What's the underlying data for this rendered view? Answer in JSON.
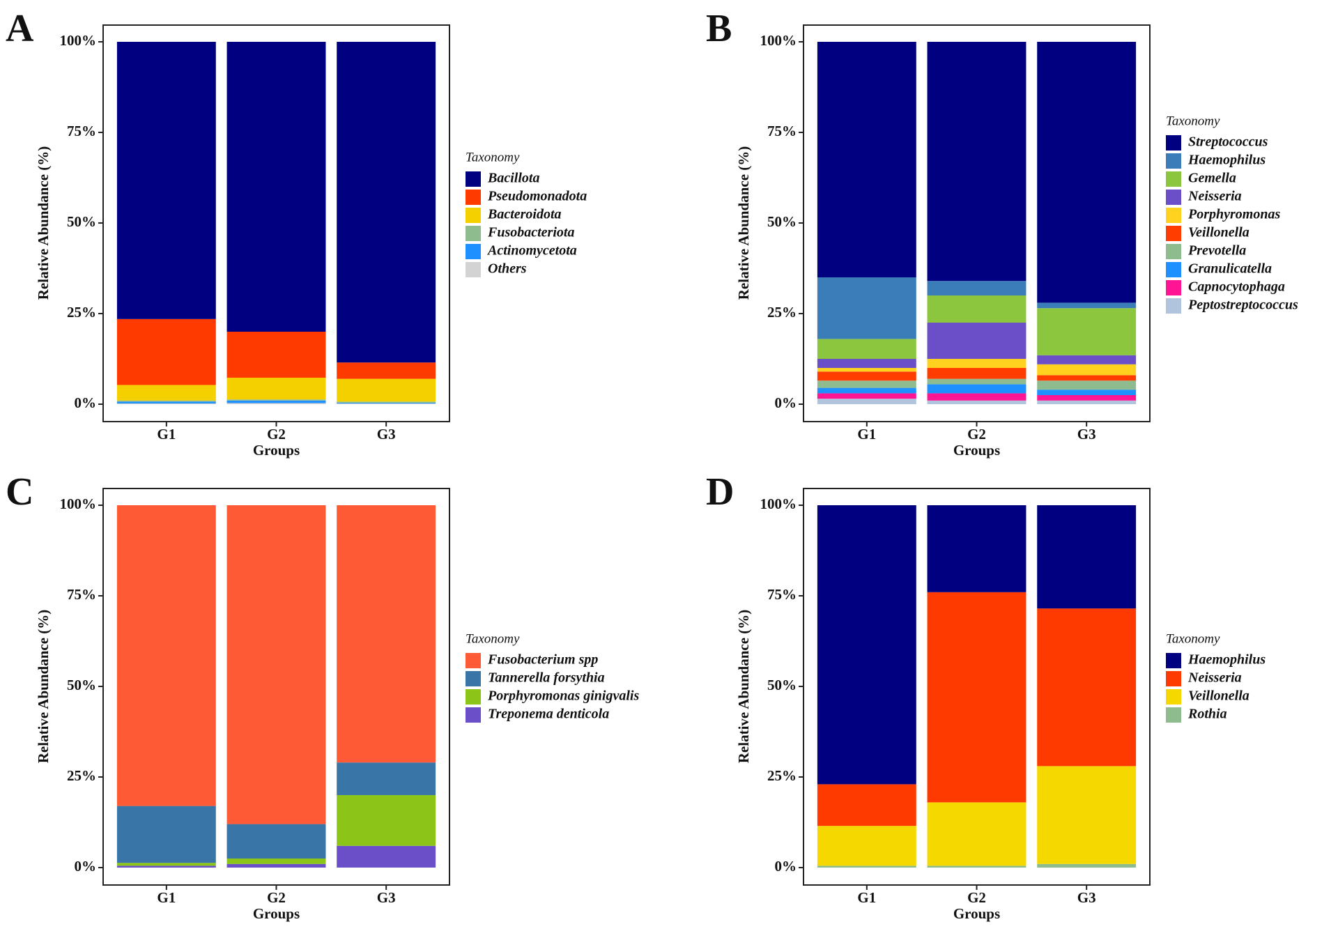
{
  "chart_data": [
    {
      "type": "bar",
      "stacked": true,
      "label": "A",
      "xlabel": "Groups",
      "ylabel": "Relative Abundance (%)",
      "legend_title": "Taxonomy",
      "grid": false,
      "categories": [
        "G1",
        "G2",
        "G3"
      ],
      "series": [
        {
          "name": "Bacillota",
          "color": "#000080",
          "values": [
            76.5,
            80,
            88.5
          ]
        },
        {
          "name": "Pseudomonadota",
          "color": "#ff3a00",
          "values": [
            18.2,
            12.7,
            4.5
          ]
        },
        {
          "name": "Bacteroidota",
          "color": "#f5d000",
          "values": [
            4.3,
            6,
            6.3
          ]
        },
        {
          "name": "Fusobacteriota",
          "color": "#8fbc8f",
          "values": [
            0.3,
            0.3,
            0.3
          ]
        },
        {
          "name": "Actinomycetota",
          "color": "#1e90ff",
          "values": [
            0.5,
            0.7,
            0.2
          ]
        },
        {
          "name": "Others",
          "color": "#d3d3d3",
          "values": [
            0.2,
            0.3,
            0.2
          ]
        }
      ],
      "ylim": [
        0,
        100
      ],
      "yticks": [
        {
          "value": 0,
          "label": "0%"
        },
        {
          "value": 25,
          "label": "25%"
        },
        {
          "value": 50,
          "label": "50%"
        },
        {
          "value": 75,
          "label": "75%"
        },
        {
          "value": 100,
          "label": "100%"
        }
      ]
    },
    {
      "type": "bar",
      "stacked": true,
      "label": "B",
      "xlabel": "Groups",
      "ylabel": "Relative Abundance (%)",
      "legend_title": "Taxonomy",
      "grid": false,
      "categories": [
        "G1",
        "G2",
        "G3"
      ],
      "series": [
        {
          "name": "Streptococcus",
          "color": "#000080",
          "values": [
            65,
            66,
            72
          ]
        },
        {
          "name": "Haemophilus",
          "color": "#3a7db8",
          "values": [
            17,
            4,
            1.5
          ]
        },
        {
          "name": "Gemella",
          "color": "#8cc63f",
          "values": [
            5.5,
            7.5,
            13
          ]
        },
        {
          "name": "Neisseria",
          "color": "#6a4fc9",
          "values": [
            2.5,
            10,
            2.5
          ]
        },
        {
          "name": "Porphyromonas",
          "color": "#ffd21f",
          "values": [
            1,
            2.5,
            3
          ]
        },
        {
          "name": "Veillonella",
          "color": "#ff3d00",
          "values": [
            2.5,
            3,
            1.5
          ]
        },
        {
          "name": "Prevotella",
          "color": "#8fbc8f",
          "values": [
            2,
            1.5,
            2.5
          ]
        },
        {
          "name": "Granulicatella",
          "color": "#1e90ff",
          "values": [
            1.5,
            2.5,
            1.5
          ]
        },
        {
          "name": "Capnocytophaga",
          "color": "#ff1493",
          "values": [
            1.5,
            2,
            1.5
          ]
        },
        {
          "name": "Peptostreptococcus",
          "color": "#b0c4de",
          "values": [
            1.5,
            1,
            1
          ]
        }
      ],
      "ylim": [
        0,
        100
      ],
      "yticks": [
        {
          "value": 0,
          "label": "0%"
        },
        {
          "value": 25,
          "label": "25%"
        },
        {
          "value": 50,
          "label": "50%"
        },
        {
          "value": 75,
          "label": "75%"
        },
        {
          "value": 100,
          "label": "100%"
        }
      ]
    },
    {
      "type": "bar",
      "stacked": true,
      "label": "C",
      "xlabel": "Groups",
      "ylabel": "Relative Abundance (%)",
      "legend_title": "Taxonomy",
      "grid": false,
      "categories": [
        "G1",
        "G2",
        "G3"
      ],
      "series": [
        {
          "name": "Fusobacterium spp",
          "color": "#ff5a36",
          "values": [
            83,
            88,
            71
          ]
        },
        {
          "name": "Tannerella forsythia",
          "color": "#3a75a8",
          "values": [
            15.7,
            9.5,
            9
          ]
        },
        {
          "name": "Porphyromonas ginigvalis",
          "color": "#8cc418",
          "values": [
            0.8,
            1.5,
            14
          ]
        },
        {
          "name": "Treponema denticola",
          "color": "#6a4fc9",
          "values": [
            0.5,
            1,
            6
          ]
        }
      ],
      "ylim": [
        0,
        100
      ],
      "yticks": [
        {
          "value": 0,
          "label": "0%"
        },
        {
          "value": 25,
          "label": "25%"
        },
        {
          "value": 50,
          "label": "50%"
        },
        {
          "value": 75,
          "label": "75%"
        },
        {
          "value": 100,
          "label": "100%"
        }
      ]
    },
    {
      "type": "bar",
      "stacked": true,
      "label": "D",
      "xlabel": "Groups",
      "ylabel": "Relative Abundance (%)",
      "legend_title": "Taxonomy",
      "grid": false,
      "categories": [
        "G1",
        "G2",
        "G3"
      ],
      "series": [
        {
          "name": "Haemophilus",
          "color": "#000080",
          "values": [
            77,
            24,
            28.5
          ]
        },
        {
          "name": "Neisseria",
          "color": "#ff3a00",
          "values": [
            11.5,
            58,
            43.5
          ]
        },
        {
          "name": "Veillonella",
          "color": "#f5d800",
          "values": [
            11,
            17.5,
            27
          ]
        },
        {
          "name": "Rothia",
          "color": "#8fbc8f",
          "values": [
            0.5,
            0.5,
            1
          ]
        }
      ],
      "ylim": [
        0,
        100
      ],
      "yticks": [
        {
          "value": 0,
          "label": "0%"
        },
        {
          "value": 25,
          "label": "25%"
        },
        {
          "value": 50,
          "label": "50%"
        },
        {
          "value": 75,
          "label": "75%"
        },
        {
          "value": 100,
          "label": "100%"
        }
      ]
    }
  ]
}
